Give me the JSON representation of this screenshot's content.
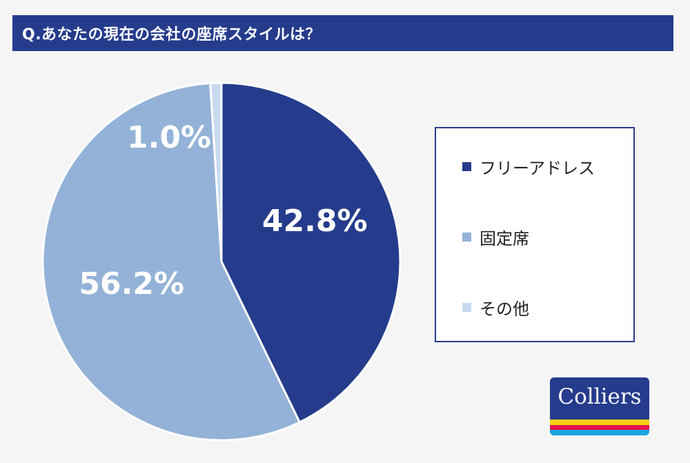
{
  "title": "Q.あなたの現在の会社の座席スタイルは？",
  "chart_data": {
    "type": "pie",
    "categories": [
      "フリーアドレス",
      "固定席",
      "その他"
    ],
    "values": [
      42.8,
      56.2,
      1.0
    ],
    "value_labels": [
      "42.8%",
      "56.2%",
      "1.0%"
    ],
    "colors": [
      "#253c8c",
      "#94b2d7",
      "#c9daf0"
    ],
    "start_angle": "12 o'clock, clockwise",
    "legend_position": "right"
  },
  "logo": {
    "text": "Colliers",
    "stripe_colors": [
      "#f7d117",
      "#e4134f",
      "#1aa7e0"
    ]
  }
}
